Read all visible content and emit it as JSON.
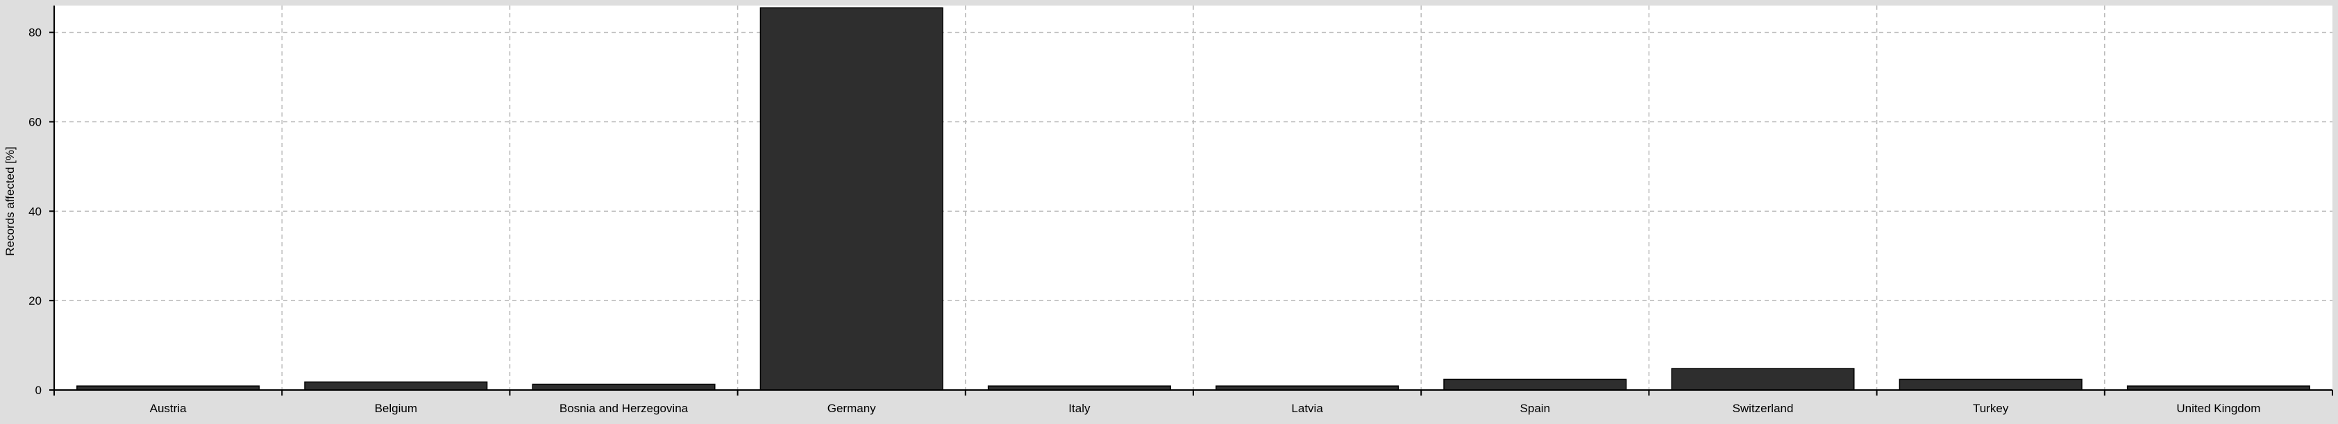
{
  "chart_data": {
    "type": "bar",
    "title": "",
    "xlabel": "",
    "ylabel": "Records affected [%]",
    "categories": [
      "Austria",
      "Belgium",
      "Bosnia and Herzegovina",
      "Germany",
      "Italy",
      "Latvia",
      "Spain",
      "Switzerland",
      "Turkey",
      "United Kingdom"
    ],
    "values": [
      0.9,
      1.8,
      1.3,
      85.5,
      0.9,
      0.9,
      2.4,
      4.8,
      2.4,
      0.9
    ],
    "yticks": [
      0,
      20,
      40,
      60,
      80
    ],
    "ylim": [
      0,
      86
    ],
    "grid": true,
    "legend": "none",
    "colors": {
      "bar_fill": "#2e2e2e",
      "bar_stroke": "#000000",
      "plot_background": "#ffffff",
      "page_background": "#dedede",
      "grid": "#b8b8b8",
      "axis": "#000000"
    }
  }
}
